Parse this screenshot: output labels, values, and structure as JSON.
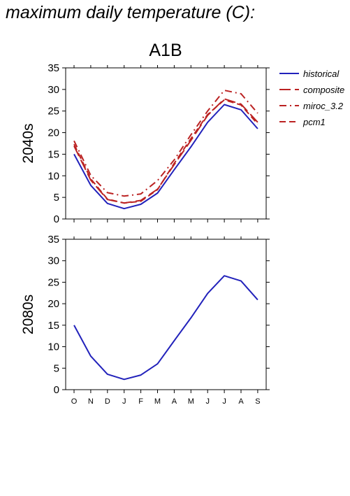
{
  "page_title": "maximum daily temperature (C):",
  "chart_data": {
    "type": "line",
    "scenario_title": "A1B",
    "months": [
      "O",
      "N",
      "D",
      "J",
      "F",
      "M",
      "A",
      "M",
      "J",
      "J",
      "A",
      "S"
    ],
    "ylim": [
      0,
      35
    ],
    "yticks": [
      0,
      5,
      10,
      15,
      20,
      25,
      30,
      35
    ],
    "legend_position": "top-right",
    "legend": [
      {
        "name": "historical",
        "color": "#2222bb",
        "dash": "solid"
      },
      {
        "name": "composite",
        "color": "#bb2222",
        "dash": "longdash"
      },
      {
        "name": "miroc_3.2",
        "color": "#bb2222",
        "dash": "dashdot"
      },
      {
        "name": "pcm1",
        "color": "#bb2222",
        "dash": "dashed"
      }
    ],
    "panels": [
      {
        "label": "2040s",
        "series": [
          {
            "name": "historical",
            "color": "#2222bb",
            "dash": "solid",
            "values": [
              15.0,
              7.8,
              3.6,
              2.4,
              3.4,
              6.0,
              11.4,
              16.7,
              22.4,
              26.5,
              25.3,
              20.9
            ]
          },
          {
            "name": "composite",
            "color": "#bb2222",
            "dash": "longdash",
            "values": [
              16.9,
              9.0,
              4.5,
              3.7,
              4.3,
              6.9,
              12.6,
              18.2,
              24.0,
              27.8,
              26.6,
              22.4
            ]
          },
          {
            "name": "miroc_3.2",
            "color": "#bb2222",
            "dash": "dashdot",
            "values": [
              18.1,
              10.1,
              6.1,
              5.3,
              5.8,
              8.9,
              13.7,
              19.5,
              25.0,
              29.8,
              29.0,
              24.5
            ]
          },
          {
            "name": "pcm1",
            "color": "#bb2222",
            "dash": "dashed",
            "values": [
              17.3,
              9.3,
              4.6,
              3.7,
              4.1,
              6.8,
              12.9,
              18.6,
              24.2,
              27.6,
              26.4,
              22.0
            ]
          }
        ]
      },
      {
        "label": "2080s",
        "series": [
          {
            "name": "historical",
            "color": "#2222bb",
            "dash": "solid",
            "values": [
              15.0,
              7.8,
              3.6,
              2.4,
              3.4,
              6.0,
              11.4,
              16.7,
              22.4,
              26.5,
              25.3,
              20.9
            ]
          }
        ]
      }
    ]
  }
}
